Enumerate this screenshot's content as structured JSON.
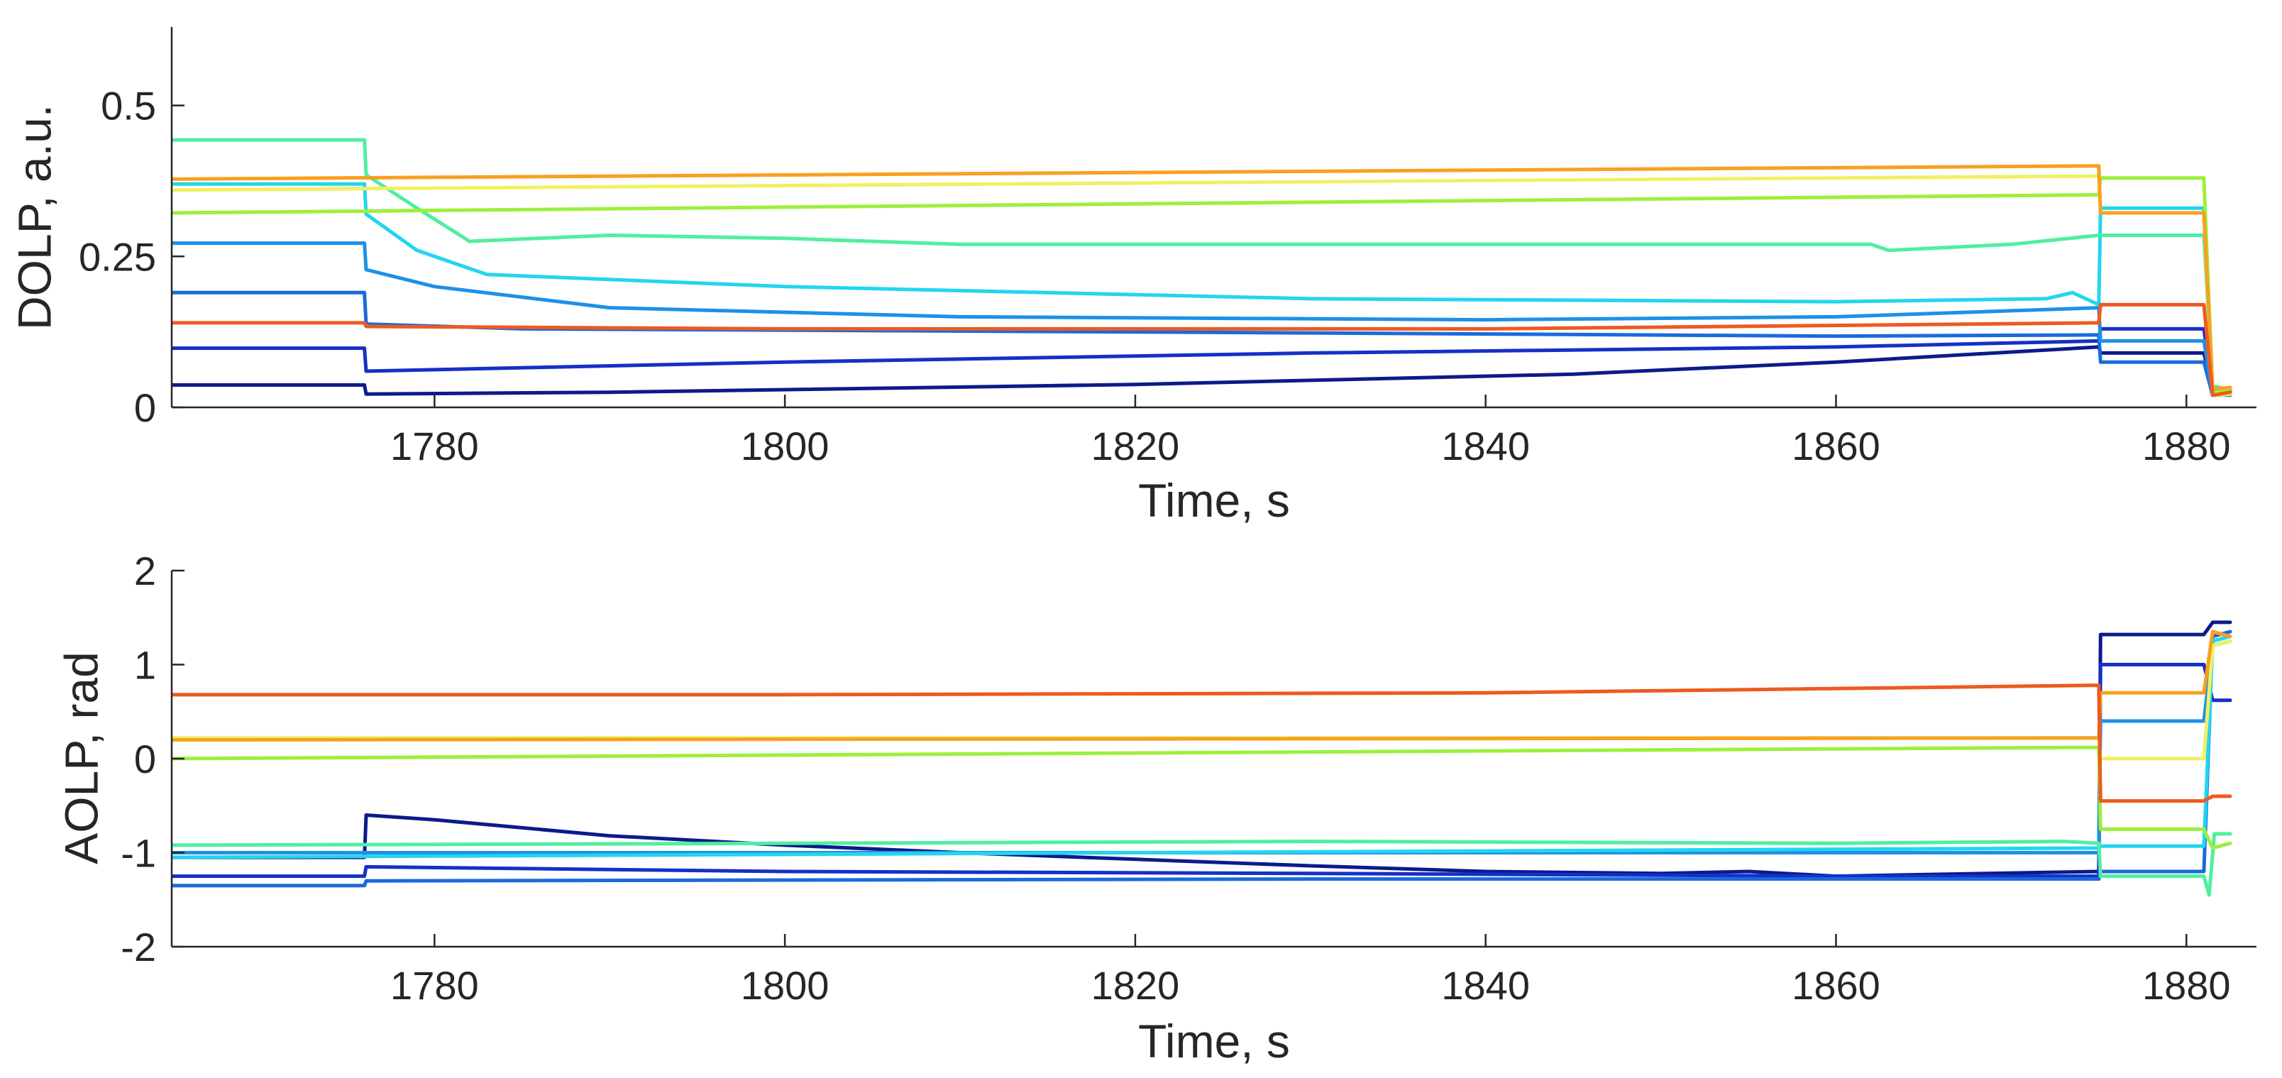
{
  "chart_data": [
    {
      "type": "line",
      "xlabel": "Time, s",
      "ylabel": "DOLP, a.u.",
      "xlim": [
        1765,
        1884
      ],
      "ylim": [
        0,
        0.63
      ],
      "xticks": [
        1780,
        1800,
        1820,
        1840,
        1860,
        1880
      ],
      "yticks": [
        0,
        0.25,
        0.5
      ],
      "ytick_labels": [
        "0",
        "0.25",
        "0.5"
      ],
      "grid": false,
      "legend": "none",
      "series": [
        {
          "color": "#0c1a8c",
          "x": [
            1765,
            1776,
            1776.1,
            1790,
            1820,
            1845,
            1860,
            1875,
            1875.1,
            1881,
            1881.5,
            1882.5
          ],
          "y": [
            0.037,
            0.037,
            0.022,
            0.025,
            0.038,
            0.055,
            0.075,
            0.1,
            0.09,
            0.09,
            0.03,
            0.028
          ]
        },
        {
          "color": "#1530c8",
          "x": [
            1765,
            1776,
            1776.1,
            1800,
            1830,
            1860,
            1875,
            1875.1,
            1881,
            1881.5,
            1882.5
          ],
          "y": [
            0.098,
            0.098,
            0.06,
            0.075,
            0.09,
            0.1,
            0.11,
            0.13,
            0.13,
            0.025,
            0.03
          ]
        },
        {
          "color": "#1a6adc",
          "x": [
            1765,
            1776,
            1776.1,
            1785,
            1820,
            1860,
            1875,
            1875.1,
            1881,
            1881.5,
            1882.5
          ],
          "y": [
            0.19,
            0.19,
            0.138,
            0.13,
            0.125,
            0.118,
            0.12,
            0.075,
            0.075,
            0.02,
            0.022
          ]
        },
        {
          "color": "#1e90e6",
          "x": [
            1765,
            1776,
            1776.1,
            1780,
            1790,
            1810,
            1840,
            1860,
            1875,
            1875.1,
            1881,
            1881.5,
            1882.5
          ],
          "y": [
            0.272,
            0.272,
            0.228,
            0.2,
            0.165,
            0.15,
            0.145,
            0.15,
            0.165,
            0.11,
            0.11,
            0.022,
            0.02
          ]
        },
        {
          "color": "#22d6ee",
          "x": [
            1765,
            1776,
            1776.1,
            1779,
            1783,
            1800,
            1830,
            1860,
            1872,
            1873.5,
            1875,
            1875.1,
            1881,
            1881.5,
            1882.5
          ],
          "y": [
            0.37,
            0.37,
            0.32,
            0.26,
            0.22,
            0.2,
            0.18,
            0.175,
            0.18,
            0.19,
            0.17,
            0.33,
            0.33,
            0.03,
            0.025
          ]
        },
        {
          "color": "#50eea0",
          "x": [
            1765,
            1776,
            1776.1,
            1779,
            1782,
            1790,
            1800,
            1810,
            1830,
            1850,
            1862,
            1863,
            1870,
            1875,
            1875.1,
            1881,
            1881.5,
            1882.5
          ],
          "y": [
            0.443,
            0.443,
            0.385,
            0.33,
            0.275,
            0.285,
            0.28,
            0.27,
            0.27,
            0.27,
            0.27,
            0.26,
            0.27,
            0.285,
            0.285,
            0.285,
            0.035,
            0.03
          ]
        },
        {
          "color": "#9cf03c",
          "x": [
            1765,
            1875,
            1875.1,
            1881,
            1881.5,
            1882.5
          ],
          "y": [
            0.322,
            0.352,
            0.38,
            0.38,
            0.025,
            0.03
          ]
        },
        {
          "color": "#f0f062",
          "x": [
            1765,
            1875,
            1875.1,
            1881,
            1881.5,
            1882.5
          ],
          "y": [
            0.36,
            0.383,
            0.322,
            0.322,
            0.02,
            0.022
          ]
        },
        {
          "color": "#f8a020",
          "x": [
            1765,
            1875,
            1875.1,
            1881,
            1881.5,
            1882.5
          ],
          "y": [
            0.378,
            0.4,
            0.322,
            0.322,
            0.03,
            0.033
          ]
        },
        {
          "color": "#ee5a20",
          "x": [
            1765,
            1776,
            1776.1,
            1800,
            1840,
            1875,
            1875.1,
            1881,
            1881.5,
            1882.5
          ],
          "y": [
            0.14,
            0.14,
            0.134,
            0.13,
            0.13,
            0.14,
            0.17,
            0.17,
            0.02,
            0.025
          ]
        }
      ]
    },
    {
      "type": "line",
      "xlabel": "Time, s",
      "ylabel": "AOLP, rad",
      "xlim": [
        1765,
        1884
      ],
      "ylim": [
        -2,
        2
      ],
      "xticks": [
        1780,
        1800,
        1820,
        1840,
        1860,
        1880
      ],
      "yticks": [
        -2,
        -1,
        0,
        1,
        2
      ],
      "ytick_labels": [
        "-2",
        "-1",
        "0",
        "1",
        "2"
      ],
      "grid": false,
      "legend": "none",
      "series": [
        {
          "color": "#0c1a8c",
          "x": [
            1765,
            1776,
            1776.1,
            1780,
            1790,
            1800,
            1810,
            1820,
            1830,
            1840,
            1850,
            1855,
            1860,
            1875,
            1875.1,
            1881,
            1881.5,
            1882.5
          ],
          "y": [
            -1.05,
            -1.05,
            -0.6,
            -0.65,
            -0.82,
            -0.92,
            -1.0,
            -1.07,
            -1.14,
            -1.2,
            -1.22,
            -1.2,
            -1.25,
            -1.2,
            1.32,
            1.32,
            1.45,
            1.45
          ]
        },
        {
          "color": "#1530c8",
          "x": [
            1765,
            1776,
            1776.1,
            1800,
            1830,
            1860,
            1875,
            1875.1,
            1881,
            1881.5,
            1882.5
          ],
          "y": [
            -1.25,
            -1.25,
            -1.15,
            -1.2,
            -1.22,
            -1.25,
            -1.25,
            1.0,
            1.0,
            0.62,
            0.62
          ]
        },
        {
          "color": "#1a6adc",
          "x": [
            1765,
            1776,
            1776.1,
            1830,
            1875,
            1875.1,
            1881,
            1881.5,
            1882.5
          ],
          "y": [
            -1.35,
            -1.35,
            -1.3,
            -1.28,
            -1.28,
            -1.2,
            -1.2,
            1.3,
            1.35
          ]
        },
        {
          "color": "#1e90e6",
          "x": [
            1765,
            1875,
            1875.1,
            1881,
            1881.5,
            1882.5
          ],
          "y": [
            -1.0,
            -1.0,
            0.4,
            0.4,
            1.2,
            1.25
          ]
        },
        {
          "color": "#22d6ee",
          "x": [
            1765,
            1875,
            1875.1,
            1881,
            1881.5,
            1882.5
          ],
          "y": [
            -1.05,
            -0.95,
            -0.93,
            -0.93,
            1.25,
            1.3
          ]
        },
        {
          "color": "#50eea0",
          "x": [
            1765,
            1800,
            1830,
            1860,
            1873,
            1875,
            1875.1,
            1881,
            1881.3,
            1881.6,
            1882.5
          ],
          "y": [
            -0.92,
            -0.9,
            -0.88,
            -0.9,
            -0.88,
            -0.9,
            -1.25,
            -1.25,
            -1.45,
            -0.8,
            -0.8
          ]
        },
        {
          "color": "#9cf03c",
          "x": [
            1765,
            1875,
            1875.1,
            1881,
            1881.5,
            1882.5
          ],
          "y": [
            0.0,
            0.12,
            -0.75,
            -0.75,
            -0.95,
            -0.9
          ]
        },
        {
          "color": "#f0f062",
          "x": [
            1765,
            1875,
            1875.1,
            1881,
            1881.5,
            1882.5
          ],
          "y": [
            0.22,
            0.22,
            0.0,
            0.0,
            1.2,
            1.25
          ]
        },
        {
          "color": "#f8a020",
          "x": [
            1765,
            1875,
            1875.1,
            1881,
            1881.5,
            1882.5
          ],
          "y": [
            0.2,
            0.22,
            0.7,
            0.7,
            1.35,
            1.3
          ]
        },
        {
          "color": "#ee5a20",
          "x": [
            1765,
            1800,
            1840,
            1875,
            1875.1,
            1881,
            1881.5,
            1882.5
          ],
          "y": [
            0.68,
            0.68,
            0.7,
            0.78,
            -0.45,
            -0.45,
            -0.4,
            -0.4
          ]
        }
      ]
    }
  ]
}
